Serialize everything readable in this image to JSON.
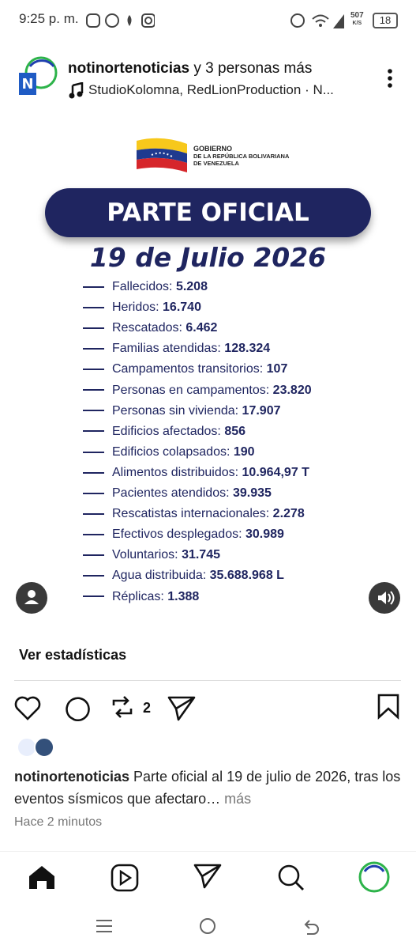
{
  "status": {
    "time": "9:25 p. m.",
    "net_speed": "507",
    "net_unit": "K/S",
    "battery": "18"
  },
  "post": {
    "account": "notinortenoticias",
    "collab": " y 3 personas más",
    "music": "StudioKolomna, RedLionProduction · N...",
    "image": {
      "gov_line1": "GOBIERNO",
      "gov_line2": "DE LA REPÚBLICA BOLIVARIANA",
      "gov_line3": "DE VENEZUELA",
      "title": "PARTE OFICIAL",
      "date": "19 de Julio 2026",
      "items": [
        {
          "label": "Fallecidos:",
          "value": "5.208"
        },
        {
          "label": "Heridos:",
          "value": "16.740"
        },
        {
          "label": "Rescatados:",
          "value": "6.462"
        },
        {
          "label": "Familias atendidas:",
          "value": "128.324"
        },
        {
          "label": "Campamentos transitorios:",
          "value": "107"
        },
        {
          "label": "Personas en campamentos:",
          "value": "23.820"
        },
        {
          "label": "Personas sin vivienda:",
          "value": "17.907"
        },
        {
          "label": "Edificios afectados:",
          "value": "856"
        },
        {
          "label": "Edificios colapsados:",
          "value": "190"
        },
        {
          "label": "Alimentos distribuidos:",
          "value": "10.964,97 T"
        },
        {
          "label": "Pacientes atendidos:",
          "value": "39.935"
        },
        {
          "label": "Rescatistas internacionales:",
          "value": "2.278"
        },
        {
          "label": "Efectivos desplegados:",
          "value": "30.989"
        },
        {
          "label": "Voluntarios:",
          "value": "31.745"
        },
        {
          "label": "Agua distribuida:",
          "value": "35.688.968 L"
        },
        {
          "label": "Réplicas:",
          "value": "1.388"
        }
      ]
    },
    "stats_link": "Ver estadísticas",
    "repost_count": "2",
    "caption_user": "notinortenoticias",
    "caption": " Parte oficial al 19 de julio de 2026, tras los eventos sísmicos que afectaro…",
    "caption_more": " más",
    "time_ago": "Hace 2 minutos"
  }
}
